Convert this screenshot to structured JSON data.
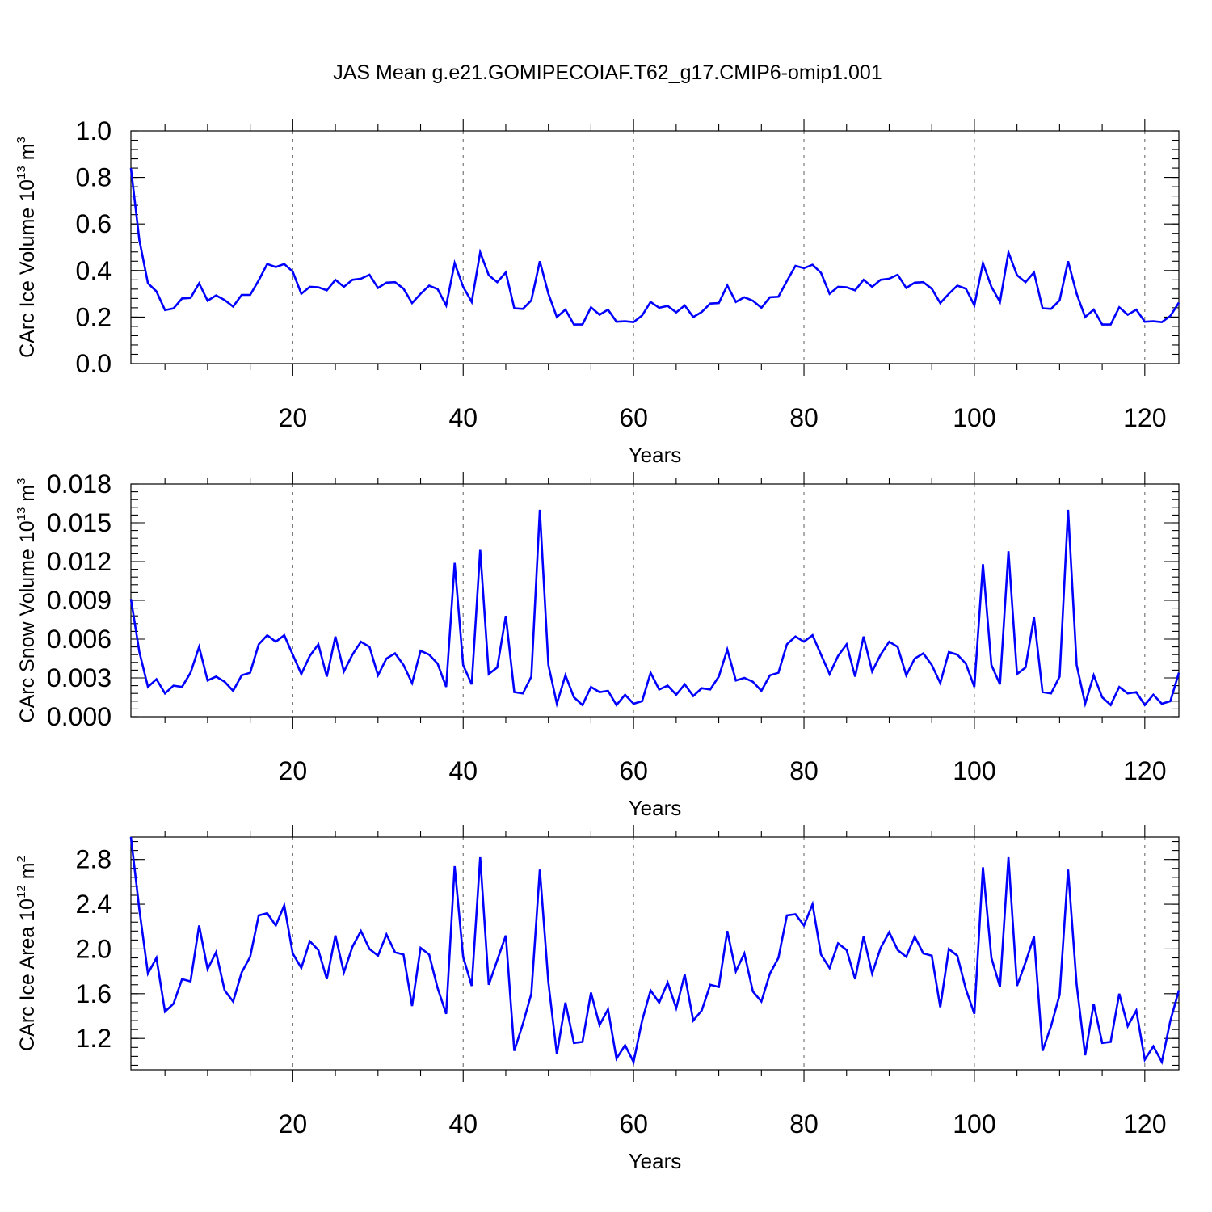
{
  "figure_title": "JAS Mean g.e21.GOMIPECOIAF.T62_g17.CMIP6-omip1.001",
  "line_color": "#0000ff",
  "chart_data": [
    {
      "type": "line",
      "ylabel": "CArc Ice Volume 10",
      "ylabel_exp": "13",
      "ylabel_unit": " m",
      "ylabel_unit_exp": "3",
      "xlabel": "Years",
      "xlim": [
        1,
        124
      ],
      "ylim": [
        0,
        1.0
      ],
      "xticks": [
        20,
        40,
        60,
        80,
        100,
        120
      ],
      "xtick_labels": [
        "20",
        "40",
        "60",
        "80",
        "100",
        "120"
      ],
      "yticks": [
        0,
        0.2,
        0.4,
        0.6,
        0.8,
        1.0
      ],
      "ytick_labels": [
        "0.0",
        "0.2",
        "0.4",
        "0.6",
        "0.8",
        "1.0"
      ],
      "grid": "vertical dashed at major x ticks",
      "series": [
        {
          "values": [
            0.84,
            0.53,
            0.345,
            0.31,
            0.23,
            0.237,
            0.28,
            0.282,
            0.345,
            0.27,
            0.293,
            0.273,
            0.245,
            0.295,
            0.295,
            0.358,
            0.428,
            0.415,
            0.428,
            0.395,
            0.3,
            0.33,
            0.328,
            0.315,
            0.36,
            0.33,
            0.36,
            0.365,
            0.382,
            0.325,
            0.348,
            0.35,
            0.322,
            0.26,
            0.3,
            0.335,
            0.32,
            0.25,
            0.432,
            0.33,
            0.265,
            0.478,
            0.38,
            0.35,
            0.392,
            0.238,
            0.235,
            0.272,
            0.44,
            0.3,
            0.2,
            0.232,
            0.168,
            0.168,
            0.242,
            0.21,
            0.232,
            0.18,
            0.182,
            0.178,
            0.207,
            0.265,
            0.24,
            0.248,
            0.22,
            0.25,
            0.2,
            0.222,
            0.258,
            0.26,
            0.336,
            0.265,
            0.285,
            0.27,
            0.24,
            0.285,
            0.287,
            0.355,
            0.42,
            0.41,
            0.425,
            0.39,
            0.3,
            0.33,
            0.328,
            0.315,
            0.36,
            0.33,
            0.36,
            0.365,
            0.382,
            0.325,
            0.348,
            0.35,
            0.322,
            0.26,
            0.3,
            0.335,
            0.322,
            0.25,
            0.432,
            0.33,
            0.265,
            0.478,
            0.38,
            0.35,
            0.392,
            0.238,
            0.235,
            0.272,
            0.44,
            0.3,
            0.2,
            0.232,
            0.168,
            0.168,
            0.242,
            0.21,
            0.232,
            0.18,
            0.182,
            0.178,
            0.205,
            0.262
          ]
        }
      ]
    },
    {
      "type": "line",
      "ylabel": "CArc Snow Volume 10",
      "ylabel_exp": "13",
      "ylabel_unit": " m",
      "ylabel_unit_exp": "3",
      "xlabel": "Years",
      "xlim": [
        1,
        124
      ],
      "ylim": [
        0,
        0.018
      ],
      "xticks": [
        20,
        40,
        60,
        80,
        100,
        120
      ],
      "xtick_labels": [
        "20",
        "40",
        "60",
        "80",
        "100",
        "120"
      ],
      "yticks": [
        0,
        0.003,
        0.006,
        0.009,
        0.012,
        0.015,
        0.018
      ],
      "ytick_labels": [
        "0.000",
        "0.003",
        "0.006",
        "0.009",
        "0.012",
        "0.015",
        "0.018"
      ],
      "grid": "vertical dashed at major x ticks",
      "series": [
        {
          "values": [
            0.0091,
            0.005,
            0.0023,
            0.0029,
            0.0018,
            0.0024,
            0.0023,
            0.0034,
            0.0054,
            0.0028,
            0.0031,
            0.0027,
            0.002,
            0.0032,
            0.0034,
            0.0056,
            0.0063,
            0.0058,
            0.0063,
            0.0048,
            0.0033,
            0.0047,
            0.0056,
            0.0031,
            0.0062,
            0.0035,
            0.0048,
            0.0058,
            0.0054,
            0.0032,
            0.0045,
            0.0049,
            0.004,
            0.0026,
            0.0051,
            0.0048,
            0.0041,
            0.0023,
            0.0119,
            0.004,
            0.0025,
            0.0129,
            0.0033,
            0.0038,
            0.0078,
            0.0019,
            0.0018,
            0.0031,
            0.016,
            0.004,
            0.001,
            0.0032,
            0.0015,
            0.0009,
            0.0023,
            0.0019,
            0.002,
            0.0009,
            0.0017,
            0.001,
            0.0012,
            0.0034,
            0.0021,
            0.0024,
            0.0017,
            0.0025,
            0.0016,
            0.0022,
            0.0021,
            0.0031,
            0.0052,
            0.0028,
            0.003,
            0.0027,
            0.002,
            0.0032,
            0.0034,
            0.0056,
            0.0062,
            0.0058,
            0.0063,
            0.0048,
            0.0033,
            0.0047,
            0.0056,
            0.0031,
            0.0062,
            0.0035,
            0.0048,
            0.0058,
            0.0054,
            0.0032,
            0.0045,
            0.0049,
            0.004,
            0.0026,
            0.005,
            0.0048,
            0.0041,
            0.0023,
            0.0118,
            0.004,
            0.0025,
            0.0128,
            0.0033,
            0.0038,
            0.0077,
            0.0019,
            0.0018,
            0.0031,
            0.016,
            0.004,
            0.001,
            0.0032,
            0.0015,
            0.0009,
            0.0023,
            0.0018,
            0.0019,
            0.0009,
            0.0017,
            0.001,
            0.0012,
            0.0034
          ]
        }
      ]
    },
    {
      "type": "line",
      "ylabel": "CArc Ice Area 10",
      "ylabel_exp": "12",
      "ylabel_unit": " m",
      "ylabel_unit_exp": "2",
      "xlabel": "Years",
      "xlim": [
        1,
        124
      ],
      "ylim": [
        0.92,
        3.0
      ],
      "xticks": [
        20,
        40,
        60,
        80,
        100,
        120
      ],
      "xtick_labels": [
        "20",
        "40",
        "60",
        "80",
        "100",
        "120"
      ],
      "yticks": [
        1.2,
        1.6,
        2.0,
        2.4,
        2.8
      ],
      "ytick_labels": [
        "1.2",
        "1.6",
        "2.0",
        "2.4",
        "2.8"
      ],
      "grid": "vertical dashed at major x ticks",
      "series": [
        {
          "values": [
            3.0,
            2.35,
            1.78,
            1.92,
            1.44,
            1.51,
            1.73,
            1.71,
            2.21,
            1.82,
            1.97,
            1.63,
            1.53,
            1.79,
            1.93,
            2.3,
            2.32,
            2.21,
            2.39,
            1.96,
            1.83,
            2.07,
            1.99,
            1.73,
            2.12,
            1.79,
            2.02,
            2.16,
            2.0,
            1.94,
            2.13,
            1.97,
            1.95,
            1.49,
            2.01,
            1.95,
            1.65,
            1.42,
            2.74,
            1.93,
            1.67,
            2.82,
            1.68,
            1.9,
            2.12,
            1.09,
            1.33,
            1.6,
            2.71,
            1.7,
            1.06,
            1.52,
            1.16,
            1.17,
            1.61,
            1.32,
            1.46,
            1.02,
            1.14,
            0.99,
            1.36,
            1.63,
            1.52,
            1.7,
            1.47,
            1.77,
            1.36,
            1.45,
            1.68,
            1.66,
            2.16,
            1.8,
            1.96,
            1.62,
            1.53,
            1.78,
            1.92,
            2.3,
            2.31,
            2.21,
            2.4,
            1.95,
            1.83,
            2.05,
            1.99,
            1.73,
            2.11,
            1.78,
            2.01,
            2.15,
            1.99,
            1.93,
            2.11,
            1.96,
            1.94,
            1.48,
            2.0,
            1.94,
            1.64,
            1.42,
            2.73,
            1.92,
            1.66,
            2.82,
            1.67,
            1.88,
            2.11,
            1.09,
            1.31,
            1.59,
            2.71,
            1.68,
            1.05,
            1.51,
            1.16,
            1.17,
            1.6,
            1.31,
            1.45,
            1.01,
            1.13,
            0.99,
            1.36,
            1.63
          ]
        }
      ]
    }
  ]
}
